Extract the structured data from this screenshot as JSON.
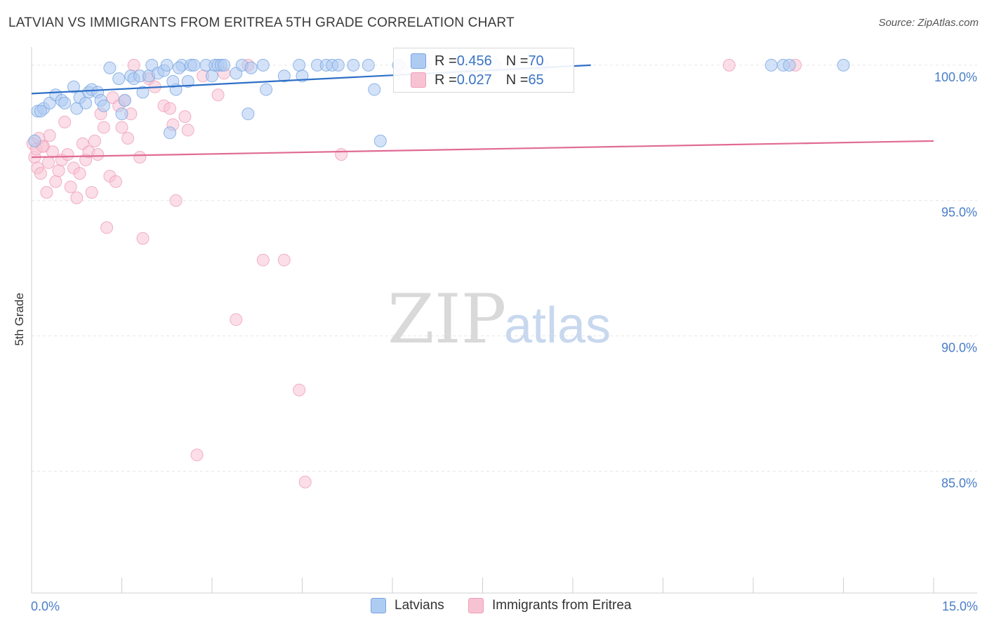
{
  "title": "LATVIAN VS IMMIGRANTS FROM ERITREA 5TH GRADE CORRELATION CHART",
  "source": "Source: ZipAtlas.com",
  "watermark": {
    "zip": "ZIP",
    "atlas": "atlas"
  },
  "colors": {
    "blue_fill": "#aecbf2",
    "blue_stroke": "#7aa6e0",
    "blue_line": "#2e6fc7",
    "pink_fill": "#f7c3d3",
    "pink_stroke": "#ef9fb9",
    "pink_line": "#e06b95",
    "tick_text": "#4a7ec7",
    "grid": "#e6e6e6"
  },
  "legend": {
    "rows": [
      {
        "r_label": "R = ",
        "r_value": "0.456",
        "n_label": "N = ",
        "n_value": "70",
        "color": "#aecbf2",
        "border": "#7aa6e0"
      },
      {
        "r_label": "R = ",
        "r_value": "0.027",
        "n_label": "N = ",
        "n_value": "65",
        "color": "#f7c3d3",
        "border": "#ef9fb9"
      }
    ]
  },
  "bottom_legend": [
    "Latvians",
    "Immigrants from Eritrea"
  ],
  "chart_data": {
    "type": "scatter",
    "title": "LATVIAN VS IMMIGRANTS FROM ERITREA 5TH GRADE CORRELATION CHART",
    "xlabel": "",
    "ylabel": "5th Grade",
    "xlim": [
      0,
      15
    ],
    "ylim": [
      80.5,
      100.8
    ],
    "x_tick_labels": [
      "0.0%",
      "15.0%"
    ],
    "y_ticks": [
      100,
      95,
      90,
      85
    ],
    "y_tick_labels": [
      "100.0%",
      "95.0%",
      "90.0%",
      "85.0%"
    ],
    "grid": true,
    "legend_placement": "top-center",
    "series": [
      {
        "name": "Latvians",
        "trend": {
          "x": [
            0.0,
            9.3
          ],
          "y": [
            98.95,
            100.0
          ]
        },
        "points": [
          [
            0.1,
            98.3
          ],
          [
            0.2,
            98.4
          ],
          [
            0.3,
            98.6
          ],
          [
            0.4,
            98.9
          ],
          [
            0.5,
            98.7
          ],
          [
            0.55,
            98.6
          ],
          [
            0.7,
            99.2
          ],
          [
            0.75,
            98.4
          ],
          [
            0.8,
            98.8
          ],
          [
            0.9,
            98.6
          ],
          [
            0.95,
            99.0
          ],
          [
            1.0,
            99.1
          ],
          [
            1.1,
            99.0
          ],
          [
            1.15,
            98.7
          ],
          [
            1.2,
            98.5
          ],
          [
            1.3,
            99.9
          ],
          [
            1.45,
            99.5
          ],
          [
            1.5,
            98.2
          ],
          [
            1.55,
            98.7
          ],
          [
            1.65,
            99.6
          ],
          [
            1.7,
            99.5
          ],
          [
            1.8,
            99.6
          ],
          [
            1.85,
            99.0
          ],
          [
            1.95,
            99.6
          ],
          [
            2.0,
            100.0
          ],
          [
            2.1,
            99.7
          ],
          [
            2.2,
            99.8
          ],
          [
            2.25,
            100.0
          ],
          [
            2.4,
            99.1
          ],
          [
            2.5,
            100.0
          ],
          [
            2.3,
            97.5
          ],
          [
            2.35,
            99.4
          ],
          [
            2.45,
            99.9
          ],
          [
            2.6,
            99.4
          ],
          [
            2.65,
            100.0
          ],
          [
            2.7,
            100.0
          ],
          [
            2.9,
            100.0
          ],
          [
            3.0,
            99.6
          ],
          [
            3.05,
            100.0
          ],
          [
            3.1,
            100.0
          ],
          [
            3.15,
            100.0
          ],
          [
            3.2,
            100.0
          ],
          [
            3.4,
            99.7
          ],
          [
            3.5,
            100.0
          ],
          [
            3.65,
            99.9
          ],
          [
            3.85,
            100.0
          ],
          [
            3.9,
            99.1
          ],
          [
            4.2,
            99.6
          ],
          [
            4.45,
            100.0
          ],
          [
            4.5,
            99.6
          ],
          [
            4.75,
            100.0
          ],
          [
            4.9,
            100.0
          ],
          [
            5.0,
            100.0
          ],
          [
            5.1,
            100.0
          ],
          [
            5.35,
            100.0
          ],
          [
            5.6,
            100.0
          ],
          [
            5.7,
            99.1
          ],
          [
            5.8,
            97.2
          ],
          [
            6.1,
            100.0
          ],
          [
            3.6,
            98.2
          ],
          [
            6.5,
            100.0
          ],
          [
            7.2,
            100.0
          ],
          [
            7.7,
            100.0
          ],
          [
            8.5,
            100.0
          ],
          [
            12.3,
            100.0
          ],
          [
            12.5,
            100.0
          ],
          [
            12.6,
            100.0
          ],
          [
            13.5,
            100.0
          ],
          [
            0.05,
            97.2
          ],
          [
            0.15,
            98.3
          ]
        ]
      },
      {
        "name": "Immigrants from Eritrea",
        "trend": {
          "x": [
            0.0,
            15.0
          ],
          "y": [
            96.6,
            97.2
          ]
        },
        "points": [
          [
            0.02,
            97.1
          ],
          [
            0.05,
            96.6
          ],
          [
            0.1,
            96.2
          ],
          [
            0.15,
            96.0
          ],
          [
            0.2,
            97.0
          ],
          [
            0.25,
            95.3
          ],
          [
            0.3,
            97.4
          ],
          [
            0.35,
            96.8
          ],
          [
            0.4,
            95.7
          ],
          [
            0.45,
            96.1
          ],
          [
            0.5,
            96.5
          ],
          [
            0.55,
            97.9
          ],
          [
            0.6,
            96.7
          ],
          [
            0.65,
            95.5
          ],
          [
            0.7,
            96.2
          ],
          [
            0.75,
            95.1
          ],
          [
            0.8,
            96.0
          ],
          [
            0.85,
            97.1
          ],
          [
            0.9,
            96.5
          ],
          [
            0.95,
            96.8
          ],
          [
            1.0,
            95.3
          ],
          [
            1.05,
            97.2
          ],
          [
            1.1,
            96.7
          ],
          [
            1.15,
            98.2
          ],
          [
            1.2,
            97.7
          ],
          [
            1.25,
            94.0
          ],
          [
            1.3,
            95.9
          ],
          [
            1.35,
            98.8
          ],
          [
            1.4,
            95.7
          ],
          [
            1.45,
            98.5
          ],
          [
            1.5,
            97.7
          ],
          [
            1.55,
            98.7
          ],
          [
            1.6,
            97.3
          ],
          [
            1.65,
            98.2
          ],
          [
            1.7,
            100.0
          ],
          [
            1.8,
            96.6
          ],
          [
            1.85,
            93.6
          ],
          [
            1.95,
            99.5
          ],
          [
            2.05,
            99.2
          ],
          [
            2.2,
            98.5
          ],
          [
            2.3,
            98.4
          ],
          [
            2.35,
            97.8
          ],
          [
            2.4,
            95.0
          ],
          [
            2.55,
            98.1
          ],
          [
            2.6,
            97.6
          ],
          [
            2.75,
            85.6
          ],
          [
            2.85,
            99.6
          ],
          [
            3.1,
            98.9
          ],
          [
            3.2,
            99.7
          ],
          [
            3.6,
            100.0
          ],
          [
            3.4,
            90.6
          ],
          [
            3.85,
            92.8
          ],
          [
            4.2,
            92.8
          ],
          [
            4.45,
            88.0
          ],
          [
            4.55,
            84.6
          ],
          [
            5.15,
            96.7
          ],
          [
            6.15,
            99.9
          ],
          [
            6.55,
            100.0
          ],
          [
            7.4,
            99.8
          ],
          [
            11.6,
            100.0
          ],
          [
            12.7,
            100.0
          ],
          [
            0.08,
            96.9
          ],
          [
            0.12,
            97.3
          ],
          [
            0.18,
            97.0
          ],
          [
            0.28,
            96.4
          ]
        ]
      }
    ]
  }
}
